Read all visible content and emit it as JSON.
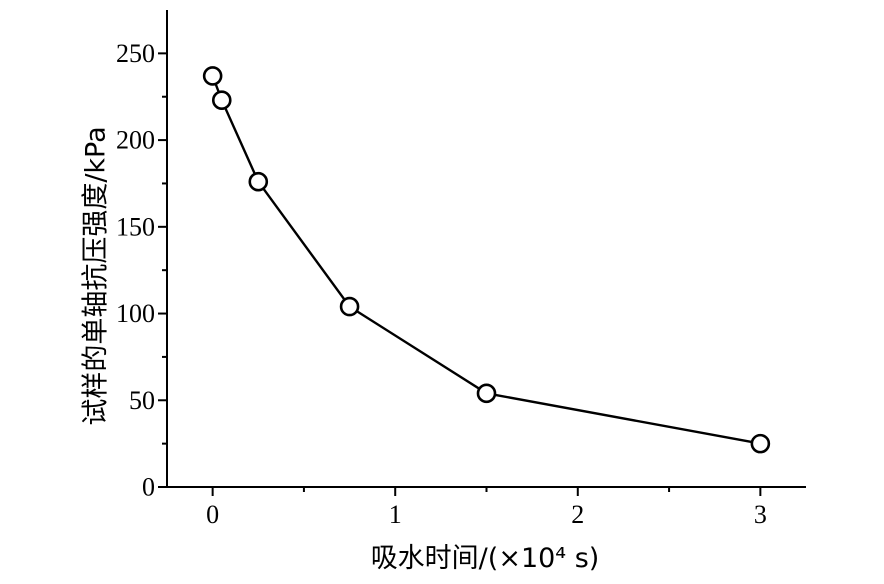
{
  "chart_data": {
    "type": "line",
    "title": "",
    "xlabel": "吸水时间/(×10⁴ s)",
    "ylabel": "试样的单轴抗压强度/kPa",
    "xlim": [
      -0.25,
      3.25
    ],
    "ylim": [
      0,
      275
    ],
    "x_ticks": [
      0,
      1,
      2,
      3
    ],
    "x_tick_labels": [
      "0",
      "1",
      "2",
      "3"
    ],
    "y_ticks": [
      0,
      50,
      100,
      150,
      200,
      250
    ],
    "y_tick_labels": [
      "0",
      "50",
      "100",
      "150",
      "200",
      "250"
    ],
    "grid": false,
    "marker": "open-circle",
    "series": [
      {
        "x": [
          0,
          0.05,
          0.25,
          0.75,
          1.5,
          3
        ],
        "y": [
          237,
          223,
          176,
          104,
          54,
          25
        ]
      }
    ]
  }
}
